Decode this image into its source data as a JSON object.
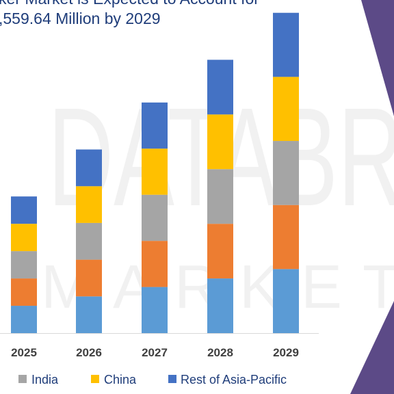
{
  "chart_data": {
    "type": "bar",
    "stacked": true,
    "title_lines": [
      "ker Market is Expected to Account for",
      ",559.64 Million by 2029"
    ],
    "categories": [
      "2025",
      "2026",
      "2027",
      "2028",
      "2029"
    ],
    "series": [
      {
        "name": "",
        "color": "#5b9bd5",
        "values": [
          32,
          43,
          54,
          64,
          75
        ]
      },
      {
        "name": "",
        "color": "#ed7d31",
        "values": [
          32,
          43,
          54,
          64,
          75
        ]
      },
      {
        "name": "India",
        "color": "#a5a5a5",
        "values": [
          32,
          43,
          54,
          64,
          75
        ]
      },
      {
        "name": "China",
        "color": "#ffc000",
        "values": [
          32,
          43,
          54,
          64,
          75
        ]
      },
      {
        "name": "Rest of Asia-Pacific",
        "color": "#4472c4",
        "values": [
          32,
          43,
          54,
          64,
          75
        ]
      }
    ],
    "ylim": [
      0,
      390
    ],
    "grid": false,
    "legend_position": "bottom"
  },
  "decor": {
    "accent_color": "#5c4a87",
    "watermark_line1": "DATABR",
    "watermark_line2": "MARKET RE"
  }
}
